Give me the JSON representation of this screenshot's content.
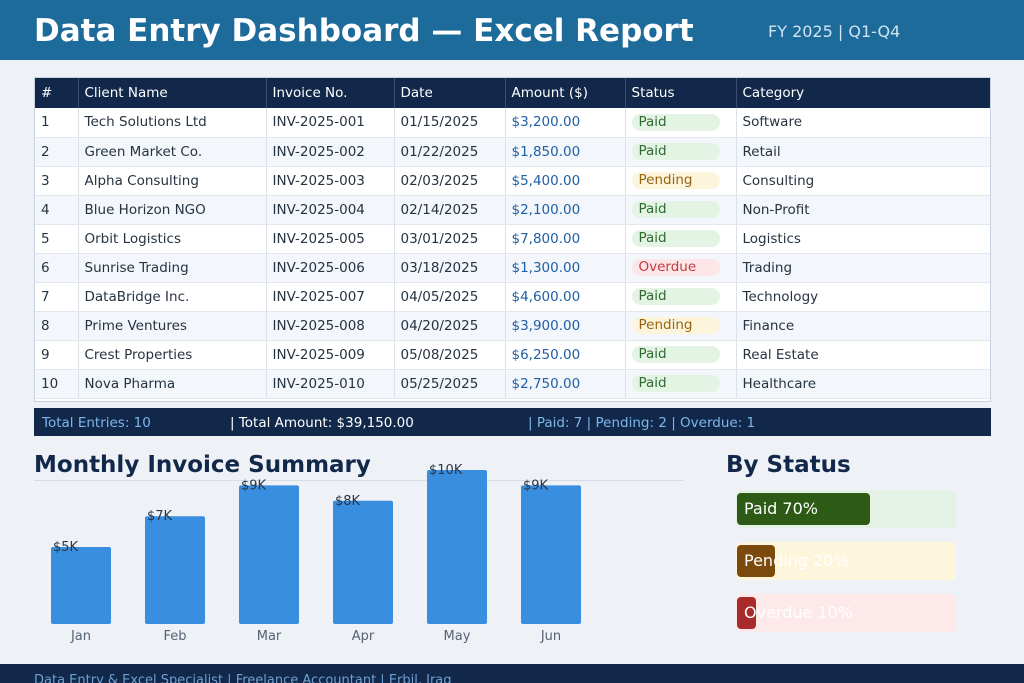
{
  "header": {
    "title": "Data Entry Dashboard — Excel Report",
    "meta": "FY 2025  |  Q1-Q4"
  },
  "table": {
    "columns": [
      "#",
      "Client Name",
      "Invoice No.",
      "Date",
      "Amount ($)",
      "Status",
      "Category"
    ],
    "rows": [
      [
        "1",
        "Tech Solutions Ltd",
        "INV-2025-001",
        "01/15/2025",
        "$3,200.00",
        "Paid",
        "Software"
      ],
      [
        "2",
        "Green Market Co.",
        "INV-2025-002",
        "01/22/2025",
        "$1,850.00",
        "Paid",
        "Retail"
      ],
      [
        "3",
        "Alpha Consulting",
        "INV-2025-003",
        "02/03/2025",
        "$5,400.00",
        "Pending",
        "Consulting"
      ],
      [
        "4",
        "Blue Horizon NGO",
        "INV-2025-004",
        "02/14/2025",
        "$2,100.00",
        "Paid",
        "Non-Profit"
      ],
      [
        "5",
        "Orbit Logistics",
        "INV-2025-005",
        "03/01/2025",
        "$7,800.00",
        "Paid",
        "Logistics"
      ],
      [
        "6",
        "Sunrise Trading",
        "INV-2025-006",
        "03/18/2025",
        "$1,300.00",
        "Overdue",
        "Trading"
      ],
      [
        "7",
        "DataBridge Inc.",
        "INV-2025-007",
        "04/05/2025",
        "$4,600.00",
        "Paid",
        "Technology"
      ],
      [
        "8",
        "Prime Ventures",
        "INV-2025-008",
        "04/20/2025",
        "$3,900.00",
        "Pending",
        "Finance"
      ],
      [
        "9",
        "Crest Properties",
        "INV-2025-009",
        "05/08/2025",
        "$6,250.00",
        "Paid",
        "Real Estate"
      ],
      [
        "10",
        "Nova Pharma",
        "INV-2025-010",
        "05/25/2025",
        "$2,750.00",
        "Paid",
        "Healthcare"
      ]
    ]
  },
  "summary": {
    "total_entries": "Total Entries: 10",
    "total_amount": "|  Total Amount: $39,150.00",
    "status_counts": "|  Paid: 7  |  Pending: 2  |  Overdue: 1"
  },
  "monthly": {
    "title": "Monthly Invoice Summary"
  },
  "by_status": {
    "title": "By Status",
    "items": [
      {
        "label": "Paid  70%",
        "fraction": 0.7,
        "fill": "#2d5a14",
        "track": "#e3f2e4"
      },
      {
        "label": "Pending  20%",
        "fraction": 0.2,
        "fill": "#7b4a0c",
        "track": "#fdf6dc"
      },
      {
        "label": "Overdue  10%",
        "fraction": 0.1,
        "fill": "#a82a2a",
        "track": "#fde8ea"
      }
    ]
  },
  "chart_data": {
    "type": "bar",
    "title": "Monthly Invoice Summary",
    "categories": [
      "Jan",
      "Feb",
      "Mar",
      "Apr",
      "May",
      "Jun"
    ],
    "values": [
      5,
      7,
      9,
      8,
      10,
      9
    ],
    "data_labels": [
      "$5K",
      "$7K",
      "$9K",
      "$8K",
      "$10K",
      "$9K"
    ],
    "ylim": [
      0,
      10
    ],
    "bar_color": "#3a8ee0"
  },
  "footer": {
    "text": "Data Entry & Excel Specialist  |  Freelance Accountant  |  Erbil, Iraq"
  }
}
